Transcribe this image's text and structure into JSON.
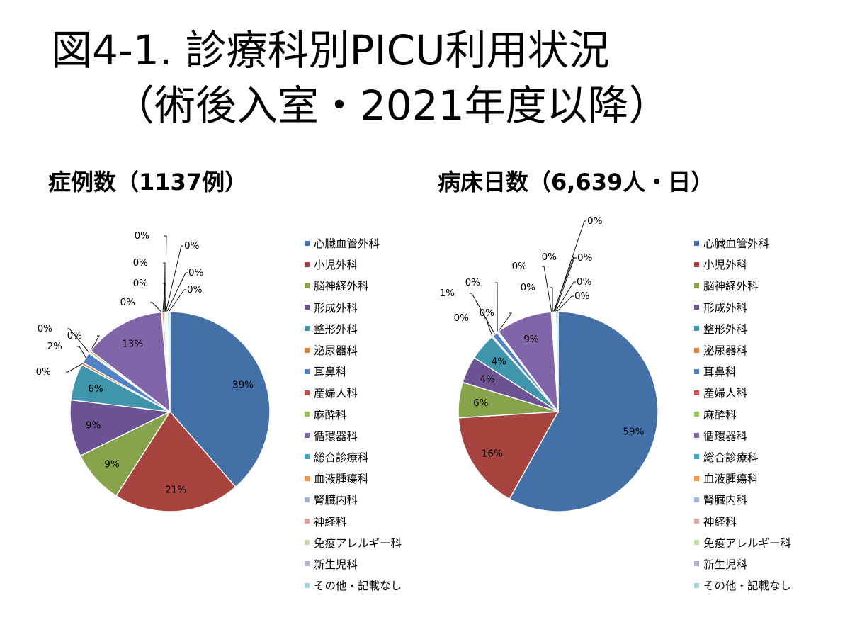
{
  "title": {
    "line1": "図4-1. 診療科別PICU利用状況",
    "line2": "（術後入室・2021年度以降）"
  },
  "colors": [
    "#4470a8",
    "#a84440",
    "#87a44c",
    "#6c5494",
    "#3f96ac",
    "#d6823c",
    "#5082c4",
    "#c64c48",
    "#9ac05a",
    "#8066a8",
    "#40aac6",
    "#f0944c",
    "#a4b2d8",
    "#daa4a4",
    "#c4d8a8",
    "#b8aed0",
    "#a4d0de"
  ],
  "chart_data": [
    {
      "type": "pie",
      "title": "症例数（1137例）",
      "categories": [
        "心臓血管外科",
        "小児外科",
        "脳神経外科",
        "形成外科",
        "整形外科",
        "泌尿器科",
        "耳鼻科",
        "産婦人科",
        "麻酔科",
        "循環器科",
        "総合診療科",
        "血液腫瘍科",
        "腎臓内科",
        "神経科",
        "免疫アレルギー科",
        "新生児科",
        "その他・記載なし"
      ],
      "values": [
        39.2,
        20.8,
        8.8,
        9.3,
        6.0,
        0.4,
        1.8,
        0.2,
        0.3,
        13.4,
        0.1,
        0.3,
        0.2,
        0.1,
        0.1,
        0.2,
        0.4
      ],
      "data_labels": [
        "39%",
        "21%",
        "9%",
        "9%",
        "6%",
        "0%",
        "2%",
        "0%",
        "0%",
        "13%",
        "0%",
        "0%",
        "0%",
        "0%",
        "0%",
        "0%",
        "0%"
      ],
      "legend": "right"
    },
    {
      "type": "pie",
      "title": "病床日数（6,639人・日）",
      "categories": [
        "心臓血管外科",
        "小児外科",
        "脳神経外科",
        "形成外科",
        "整形外科",
        "泌尿器科",
        "耳鼻科",
        "産婦人科",
        "麻酔科",
        "循環器科",
        "総合診療科",
        "血液腫瘍科",
        "腎臓内科",
        "神経科",
        "免疫アレルギー科",
        "新生児科",
        "その他・記載なし"
      ],
      "values": [
        58.8,
        16.1,
        5.8,
        4.4,
        4.4,
        0.2,
        0.9,
        0.1,
        0.2,
        9.2,
        0.1,
        0.2,
        0.1,
        0.1,
        0.1,
        0.1,
        0.4
      ],
      "data_labels": [
        "59%",
        "16%",
        "6%",
        "4%",
        "4%",
        "0%",
        "1%",
        "0%",
        "0%",
        "9%",
        "0%",
        "0%",
        "0%",
        "0%",
        "0%",
        "0%",
        "0%"
      ],
      "legend": "right"
    }
  ]
}
